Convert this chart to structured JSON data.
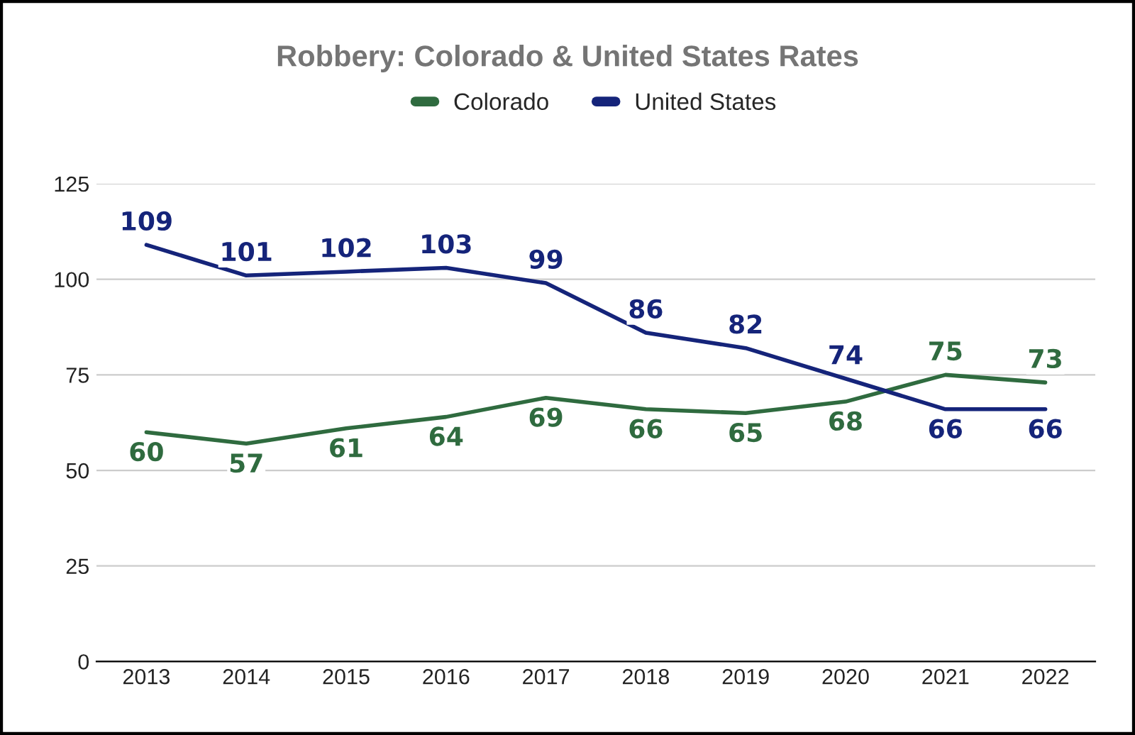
{
  "chart_data": {
    "type": "line",
    "title": "Robbery: Colorado & United States Rates",
    "categories": [
      "2013",
      "2014",
      "2015",
      "2016",
      "2017",
      "2018",
      "2019",
      "2020",
      "2021",
      "2022"
    ],
    "series": [
      {
        "name": "Colorado",
        "color": "#2f6b3f",
        "values": [
          60,
          57,
          61,
          64,
          69,
          66,
          65,
          68,
          75,
          73
        ]
      },
      {
        "name": "United States",
        "color": "#15247a",
        "values": [
          109,
          101,
          102,
          103,
          99,
          86,
          82,
          74,
          66,
          66
        ]
      }
    ],
    "ylim": [
      0,
      125
    ],
    "yticks": [
      0,
      25,
      50,
      75,
      100,
      125
    ],
    "grid": "y",
    "legend": "top",
    "data_labels": true,
    "marker": "none",
    "line_style": "solid"
  }
}
